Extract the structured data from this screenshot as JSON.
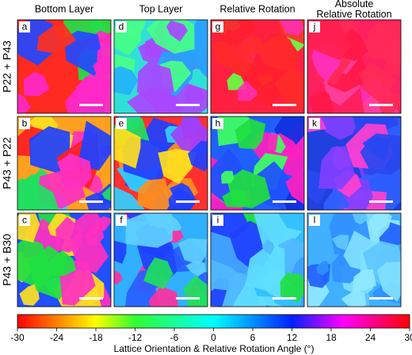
{
  "column_headers": [
    [
      "Bottom Layer"
    ],
    [
      "Top Layer"
    ],
    [
      "Relative Rotation"
    ],
    [
      "Absolute",
      "Relative Rotation"
    ]
  ],
  "row_labels": [
    "P22 + P43",
    "P43 + P22",
    "P43 + B30"
  ],
  "panels": [
    [
      "a",
      "d",
      "g",
      "j"
    ],
    [
      "b",
      "e",
      "h",
      "k"
    ],
    [
      "c",
      "f",
      "i",
      "l"
    ]
  ],
  "colorbar": {
    "label": "Lattice Orientation & Relative Rotation Angle (°)",
    "range": [
      -30,
      30
    ],
    "ticks": [
      -30,
      -24,
      -18,
      -12,
      -6,
      0,
      6,
      12,
      18,
      24,
      30
    ]
  }
}
